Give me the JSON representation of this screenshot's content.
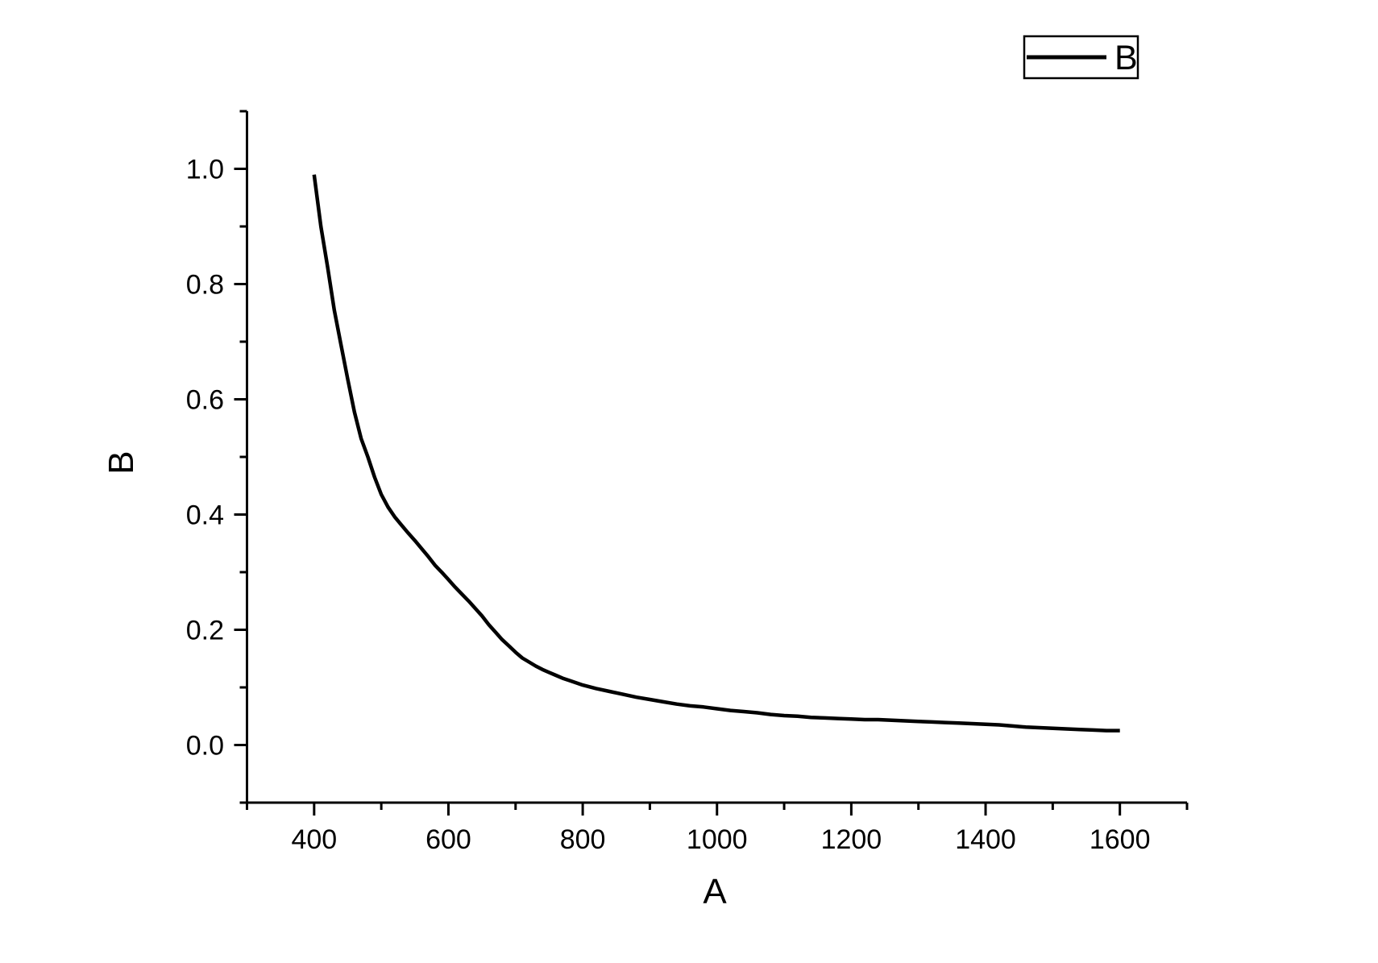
{
  "figure": {
    "background": "#ffffff",
    "axis_color": "#000000"
  },
  "chart_data": {
    "type": "line",
    "title": "",
    "xlabel": "A",
    "ylabel": "B",
    "xlim": [
      300,
      1700
    ],
    "ylim": [
      -0.1,
      1.1
    ],
    "grid": false,
    "x_major_ticks": [
      400,
      600,
      800,
      1000,
      1200,
      1400,
      1600
    ],
    "x_tick_labels": [
      "400",
      "600",
      "800",
      "1000",
      "1200",
      "1400",
      "1600"
    ],
    "x_minor_ticks": [
      300,
      500,
      700,
      900,
      1100,
      1300,
      1500,
      1700
    ],
    "y_major_ticks": [
      0.0,
      0.2,
      0.4,
      0.6,
      0.8,
      1.0
    ],
    "y_tick_labels": [
      "0.0",
      "0.2",
      "0.4",
      "0.6",
      "0.8",
      "1.0"
    ],
    "y_minor_ticks": [
      -0.1,
      0.1,
      0.3,
      0.5,
      0.7,
      0.9,
      1.1
    ],
    "legend": {
      "position": "top-right",
      "entries": [
        {
          "label": "B",
          "color": "#000000"
        }
      ]
    },
    "series": [
      {
        "name": "B",
        "color": "#000000",
        "points": [
          [
            400,
            0.99
          ],
          [
            410,
            0.9
          ],
          [
            420,
            0.83
          ],
          [
            430,
            0.755
          ],
          [
            440,
            0.695
          ],
          [
            450,
            0.635
          ],
          [
            460,
            0.578
          ],
          [
            470,
            0.532
          ],
          [
            480,
            0.5
          ],
          [
            490,
            0.465
          ],
          [
            500,
            0.435
          ],
          [
            510,
            0.413
          ],
          [
            520,
            0.396
          ],
          [
            530,
            0.382
          ],
          [
            540,
            0.368
          ],
          [
            550,
            0.355
          ],
          [
            560,
            0.341
          ],
          [
            570,
            0.327
          ],
          [
            580,
            0.312
          ],
          [
            590,
            0.3
          ],
          [
            600,
            0.287
          ],
          [
            610,
            0.274
          ],
          [
            620,
            0.262
          ],
          [
            630,
            0.25
          ],
          [
            640,
            0.237
          ],
          [
            650,
            0.224
          ],
          [
            660,
            0.209
          ],
          [
            670,
            0.196
          ],
          [
            680,
            0.183
          ],
          [
            690,
            0.172
          ],
          [
            700,
            0.161
          ],
          [
            710,
            0.151
          ],
          [
            720,
            0.144
          ],
          [
            730,
            0.137
          ],
          [
            740,
            0.131
          ],
          [
            750,
            0.126
          ],
          [
            760,
            0.121
          ],
          [
            770,
            0.116
          ],
          [
            780,
            0.112
          ],
          [
            790,
            0.108
          ],
          [
            800,
            0.104
          ],
          [
            820,
            0.098
          ],
          [
            840,
            0.093
          ],
          [
            860,
            0.088
          ],
          [
            880,
            0.083
          ],
          [
            900,
            0.079
          ],
          [
            920,
            0.075
          ],
          [
            940,
            0.071
          ],
          [
            960,
            0.068
          ],
          [
            980,
            0.066
          ],
          [
            1000,
            0.063
          ],
          [
            1020,
            0.06
          ],
          [
            1040,
            0.058
          ],
          [
            1060,
            0.056
          ],
          [
            1080,
            0.053
          ],
          [
            1100,
            0.051
          ],
          [
            1120,
            0.05
          ],
          [
            1140,
            0.048
          ],
          [
            1160,
            0.047
          ],
          [
            1180,
            0.046
          ],
          [
            1200,
            0.045
          ],
          [
            1220,
            0.044
          ],
          [
            1240,
            0.044
          ],
          [
            1260,
            0.043
          ],
          [
            1280,
            0.042
          ],
          [
            1300,
            0.041
          ],
          [
            1320,
            0.04
          ],
          [
            1340,
            0.039
          ],
          [
            1360,
            0.038
          ],
          [
            1380,
            0.037
          ],
          [
            1400,
            0.036
          ],
          [
            1420,
            0.035
          ],
          [
            1440,
            0.033
          ],
          [
            1460,
            0.031
          ],
          [
            1480,
            0.03
          ],
          [
            1500,
            0.029
          ],
          [
            1520,
            0.028
          ],
          [
            1540,
            0.027
          ],
          [
            1560,
            0.026
          ],
          [
            1580,
            0.025
          ],
          [
            1600,
            0.025
          ]
        ]
      }
    ]
  }
}
